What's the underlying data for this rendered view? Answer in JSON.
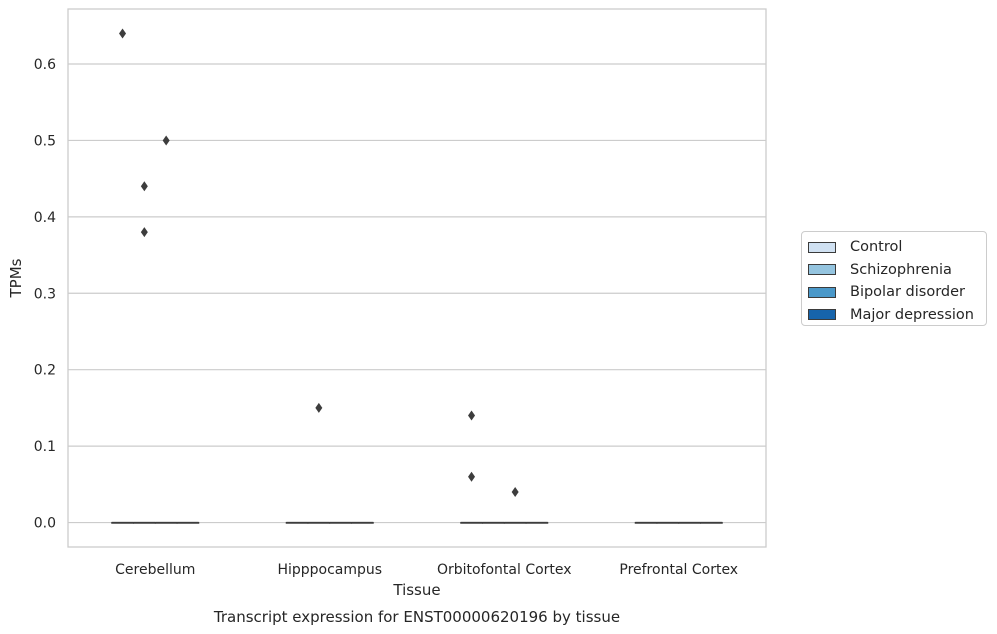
{
  "chart_data": {
    "type": "box",
    "title": "Transcript expression for ENST00000620196 by tissue",
    "xlabel": "Tissue",
    "ylabel": "TPMs",
    "categories": [
      "Cerebellum",
      "Hipppocampus",
      "Orbitofontal Cortex",
      "Prefrontal Cortex"
    ],
    "ylim": [
      -0.032,
      0.672
    ],
    "yticks": [
      0.0,
      0.1,
      0.2,
      0.3,
      0.4,
      0.5,
      0.6
    ],
    "ytick_labels": [
      "0.0",
      "0.1",
      "0.2",
      "0.3",
      "0.4",
      "0.5",
      "0.6"
    ],
    "grid": "horizontal",
    "legend_position": "right",
    "series": [
      {
        "name": "Control",
        "color": "#d0e1f2",
        "boxes": [
          {
            "median": 0,
            "q1": 0,
            "q3": 0,
            "whisker_low": 0,
            "whisker_high": 0,
            "outliers": [
              0.64
            ]
          },
          {
            "median": 0,
            "q1": 0,
            "q3": 0,
            "whisker_low": 0,
            "whisker_high": 0,
            "outliers": []
          },
          {
            "median": 0,
            "q1": 0,
            "q3": 0,
            "whisker_low": 0,
            "whisker_high": 0,
            "outliers": [
              0.14,
              0.06
            ]
          },
          {
            "median": 0,
            "q1": 0,
            "q3": 0,
            "whisker_low": 0,
            "whisker_high": 0,
            "outliers": []
          }
        ]
      },
      {
        "name": "Schizophrenia",
        "color": "#94c4df",
        "boxes": [
          {
            "median": 0,
            "q1": 0,
            "q3": 0,
            "whisker_low": 0,
            "whisker_high": 0,
            "outliers": [
              0.44,
              0.38
            ]
          },
          {
            "median": 0,
            "q1": 0,
            "q3": 0,
            "whisker_low": 0,
            "whisker_high": 0,
            "outliers": [
              0.15
            ]
          },
          {
            "median": 0,
            "q1": 0,
            "q3": 0,
            "whisker_low": 0,
            "whisker_high": 0,
            "outliers": []
          },
          {
            "median": 0,
            "q1": 0,
            "q3": 0,
            "whisker_low": 0,
            "whisker_high": 0,
            "outliers": []
          }
        ]
      },
      {
        "name": "Bipolar disorder",
        "color": "#4a98c9",
        "boxes": [
          {
            "median": 0,
            "q1": 0,
            "q3": 0,
            "whisker_low": 0,
            "whisker_high": 0,
            "outliers": [
              0.5
            ]
          },
          {
            "median": 0,
            "q1": 0,
            "q3": 0,
            "whisker_low": 0,
            "whisker_high": 0,
            "outliers": []
          },
          {
            "median": 0,
            "q1": 0,
            "q3": 0,
            "whisker_low": 0,
            "whisker_high": 0,
            "outliers": [
              0.04
            ]
          },
          {
            "median": 0,
            "q1": 0,
            "q3": 0,
            "whisker_low": 0,
            "whisker_high": 0,
            "outliers": []
          }
        ]
      },
      {
        "name": "Major depression",
        "color": "#1764ab",
        "boxes": [
          {
            "median": 0,
            "q1": 0,
            "q3": 0,
            "whisker_low": 0,
            "whisker_high": 0,
            "outliers": []
          },
          {
            "median": 0,
            "q1": 0,
            "q3": 0,
            "whisker_low": 0,
            "whisker_high": 0,
            "outliers": []
          },
          {
            "median": 0,
            "q1": 0,
            "q3": 0,
            "whisker_low": 0,
            "whisker_high": 0,
            "outliers": []
          },
          {
            "median": 0,
            "q1": 0,
            "q3": 0,
            "whisker_low": 0,
            "whisker_high": 0,
            "outliers": []
          }
        ]
      }
    ]
  }
}
